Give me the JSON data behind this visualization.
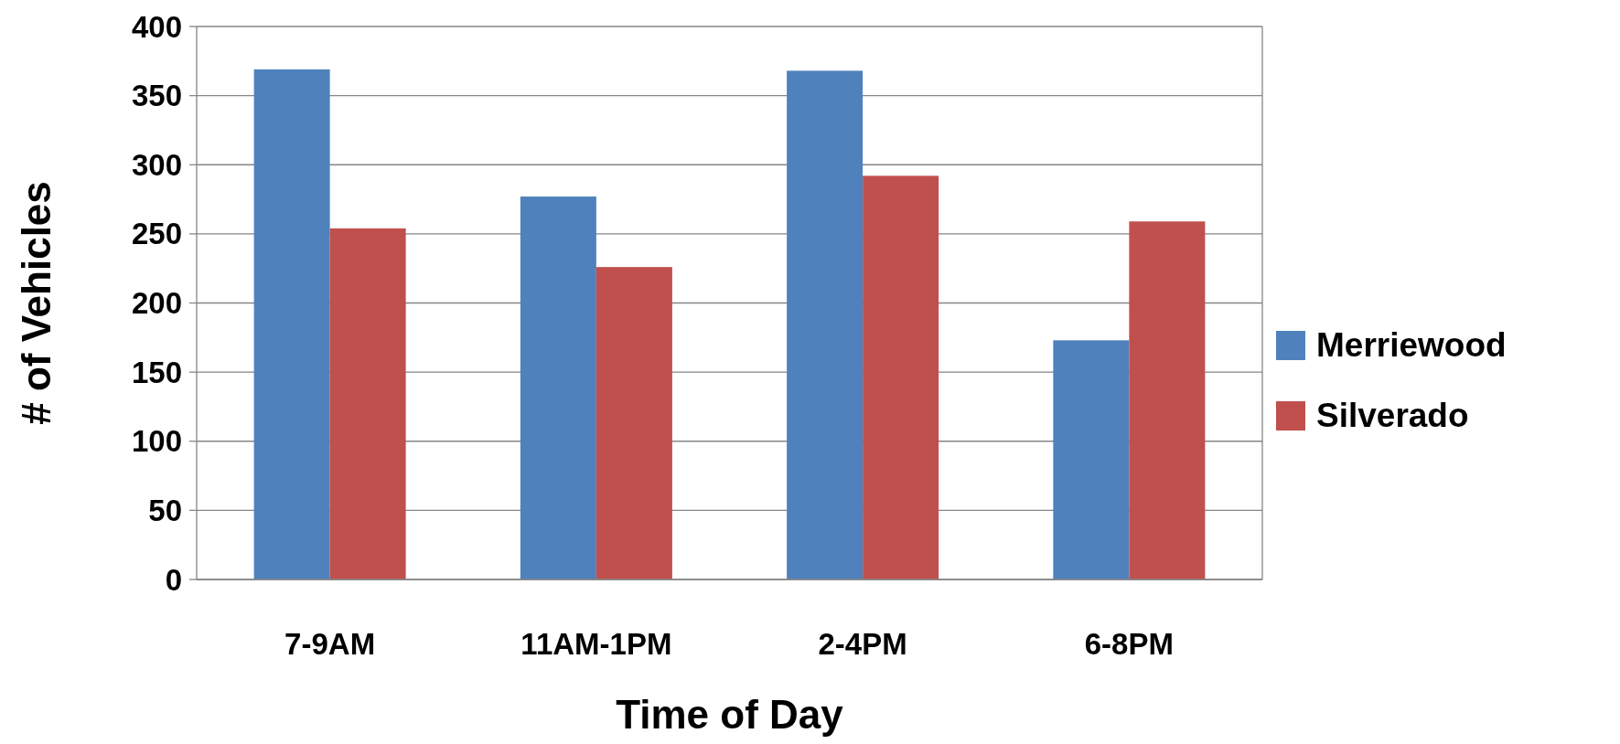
{
  "chart_data": {
    "type": "bar",
    "xlabel": "Time of Day",
    "ylabel": "# of Vehicles",
    "categories": [
      "7-9AM",
      "11AM-1PM",
      "2-4PM",
      "6-8PM"
    ],
    "series": [
      {
        "name": "Merriewood",
        "color": "#4f81bd",
        "values": [
          369,
          277,
          368,
          173
        ]
      },
      {
        "name": "Silverado",
        "color": "#c0504d",
        "values": [
          254,
          226,
          292,
          259
        ]
      }
    ],
    "ylim": [
      0,
      400
    ],
    "yticks": [
      0,
      50,
      100,
      150,
      200,
      250,
      300,
      350,
      400
    ],
    "grid": "y",
    "legend": "right"
  }
}
